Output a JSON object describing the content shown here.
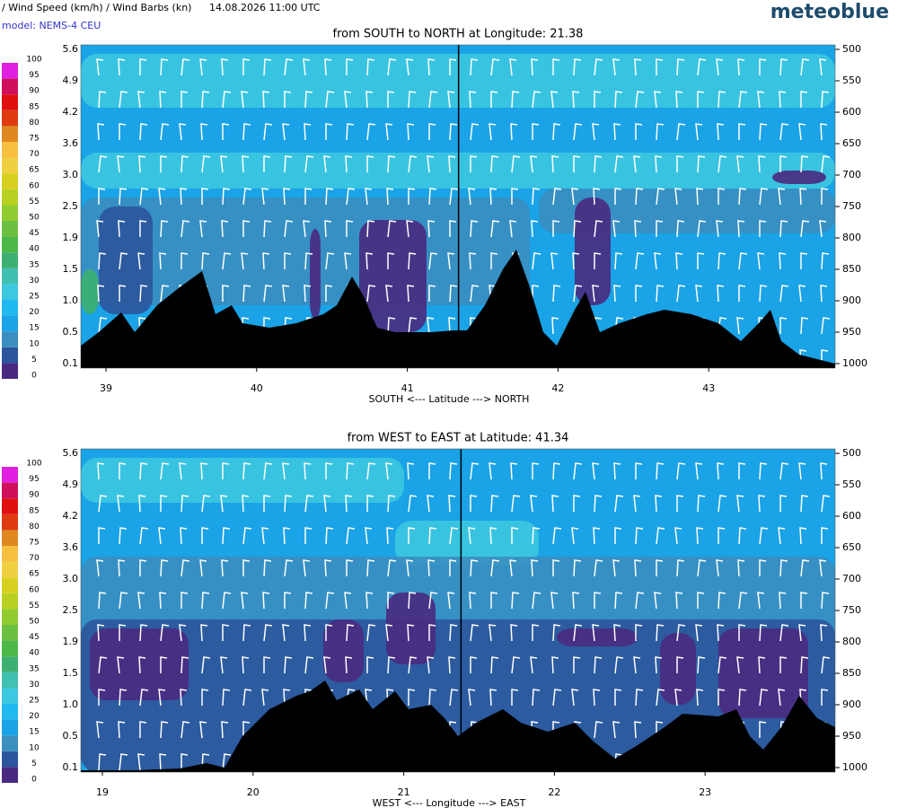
{
  "header": {
    "title": "/ Wind Speed (km/h) / Wind Barbs (kn)",
    "time": "14.08.2026  11:00 UTC",
    "model": "model: NEMS-4 CEU",
    "brand": "meteoblue"
  },
  "colorbar": {
    "levels": [
      0,
      5,
      10,
      15,
      20,
      25,
      30,
      35,
      40,
      45,
      50,
      55,
      60,
      65,
      70,
      75,
      80,
      85,
      90,
      95,
      100
    ],
    "colors": [
      "#4a2a80",
      "#2b559c",
      "#3a8ec0",
      "#1aa3e6",
      "#22b8f0",
      "#3cc8e0",
      "#40c0b0",
      "#3cb070",
      "#4cb848",
      "#6cc040",
      "#90cc30",
      "#b8d020",
      "#d8d020",
      "#f0d040",
      "#f8c040",
      "#e08820",
      "#e03a10",
      "#e01010",
      "#d0105a",
      "#e020e0"
    ]
  },
  "panels": [
    {
      "title": "from SOUTH to NORTH at Longitude:  21.38",
      "xlabel": "SOUTH <---   Latitude   ---> NORTH",
      "xlim": [
        38.833,
        43.839
      ],
      "xticks": [
        39,
        40,
        41,
        42,
        43
      ],
      "marker": 41.34,
      "plim": [
        500,
        1000
      ],
      "pticks": [
        500,
        550,
        600,
        650,
        700,
        750,
        800,
        850,
        900,
        950,
        1000
      ],
      "heights": [
        "5.6",
        "4.9",
        "4.2",
        "3.6",
        "3.0",
        "2.5",
        "1.9",
        "1.5",
        "1.0",
        "0.5",
        "0.1"
      ]
    },
    {
      "title": "from WEST to EAST at Latitude:  41.34",
      "xlabel": "WEST <---   Longitude   ---> EAST",
      "xlim": [
        18.857,
        23.863
      ],
      "xticks": [
        19,
        20,
        21,
        22,
        23
      ],
      "marker": 21.38,
      "plim": [
        500,
        1000
      ],
      "pticks": [
        500,
        550,
        600,
        650,
        700,
        750,
        800,
        850,
        900,
        950,
        1000
      ],
      "heights": [
        "5.6",
        "4.9",
        "4.2",
        "3.6",
        "3.0",
        "2.5",
        "1.9",
        "1.5",
        "1.0",
        "0.5",
        "0.1"
      ]
    }
  ]
}
